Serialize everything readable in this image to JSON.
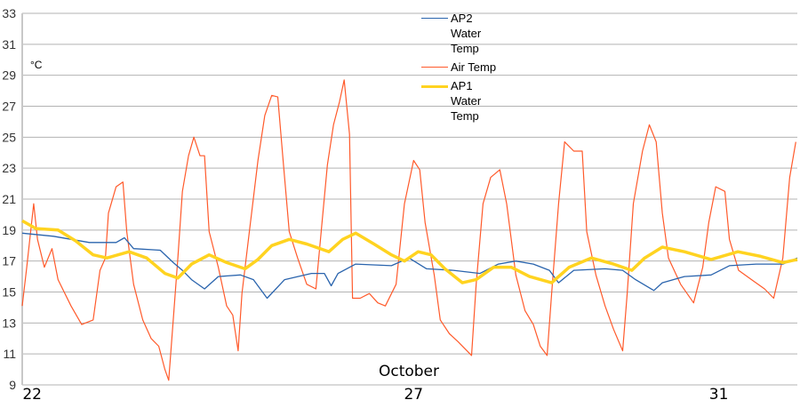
{
  "chart_data": {
    "type": "line",
    "title": "",
    "xlabel": "October",
    "ylabel": "°C",
    "xlim": [
      21.87,
      32.03
    ],
    "ylim": [
      9,
      33
    ],
    "yticks": [
      "9",
      "11",
      "13",
      "15",
      "17",
      "19",
      "21",
      "23",
      "25",
      "27",
      "29",
      "31",
      "33"
    ],
    "xticks": [
      {
        "value": 22,
        "label": "22"
      },
      {
        "value": 27,
        "label": "27"
      },
      {
        "value": 31,
        "label": "31"
      }
    ],
    "grid": true,
    "legend_position": "top-center",
    "series": [
      {
        "name": "AP2 Water Temp",
        "color": "#2a64ad",
        "width": 1.3,
        "points": [
          [
            21.87,
            18.8
          ],
          [
            22.28,
            18.6
          ],
          [
            22.75,
            18.2
          ],
          [
            23.1,
            18.2
          ],
          [
            23.21,
            18.5
          ],
          [
            23.33,
            17.8
          ],
          [
            23.68,
            17.7
          ],
          [
            23.85,
            16.9
          ],
          [
            23.97,
            16.4
          ],
          [
            24.09,
            15.8
          ],
          [
            24.26,
            15.2
          ],
          [
            24.44,
            16.0
          ],
          [
            24.73,
            16.1
          ],
          [
            24.9,
            15.8
          ],
          [
            25.08,
            14.6
          ],
          [
            25.31,
            15.8
          ],
          [
            25.66,
            16.2
          ],
          [
            25.83,
            16.2
          ],
          [
            25.92,
            15.4
          ],
          [
            26.01,
            16.2
          ],
          [
            26.24,
            16.8
          ],
          [
            26.71,
            16.7
          ],
          [
            26.94,
            17.2
          ],
          [
            27.17,
            16.5
          ],
          [
            27.52,
            16.4
          ],
          [
            27.87,
            16.2
          ],
          [
            28.11,
            16.8
          ],
          [
            28.34,
            17.0
          ],
          [
            28.57,
            16.8
          ],
          [
            28.78,
            16.4
          ],
          [
            28.9,
            15.6
          ],
          [
            29.1,
            16.4
          ],
          [
            29.51,
            16.5
          ],
          [
            29.74,
            16.4
          ],
          [
            29.91,
            15.8
          ],
          [
            30.15,
            15.1
          ],
          [
            30.26,
            15.6
          ],
          [
            30.55,
            16.0
          ],
          [
            30.9,
            16.1
          ],
          [
            31.14,
            16.7
          ],
          [
            31.49,
            16.8
          ],
          [
            31.84,
            16.8
          ],
          [
            32.03,
            17.2
          ]
        ]
      },
      {
        "name": "Air Temp",
        "color": "#ff5a2b",
        "width": 1.2,
        "points": [
          [
            21.87,
            14.1
          ],
          [
            21.93,
            16.6
          ],
          [
            22.02,
            20.7
          ],
          [
            22.07,
            18.4
          ],
          [
            22.16,
            16.6
          ],
          [
            22.26,
            17.8
          ],
          [
            22.34,
            15.8
          ],
          [
            22.51,
            14.1
          ],
          [
            22.65,
            12.9
          ],
          [
            22.8,
            13.2
          ],
          [
            22.89,
            16.4
          ],
          [
            22.96,
            17.2
          ],
          [
            23.0,
            20.1
          ],
          [
            23.1,
            21.8
          ],
          [
            23.19,
            22.1
          ],
          [
            23.24,
            18.9
          ],
          [
            23.33,
            15.5
          ],
          [
            23.45,
            13.2
          ],
          [
            23.56,
            12.0
          ],
          [
            23.66,
            11.5
          ],
          [
            23.74,
            10.0
          ],
          [
            23.79,
            9.3
          ],
          [
            23.85,
            13.2
          ],
          [
            23.91,
            17.2
          ],
          [
            23.97,
            21.5
          ],
          [
            24.05,
            23.8
          ],
          [
            24.12,
            25.0
          ],
          [
            24.2,
            23.8
          ],
          [
            24.26,
            23.8
          ],
          [
            24.32,
            18.9
          ],
          [
            24.44,
            16.6
          ],
          [
            24.55,
            14.1
          ],
          [
            24.63,
            13.5
          ],
          [
            24.7,
            11.2
          ],
          [
            24.75,
            14.9
          ],
          [
            24.84,
            18.6
          ],
          [
            24.96,
            23.5
          ],
          [
            25.05,
            26.4
          ],
          [
            25.14,
            27.7
          ],
          [
            25.22,
            27.6
          ],
          [
            25.29,
            23.5
          ],
          [
            25.37,
            18.9
          ],
          [
            25.48,
            17.2
          ],
          [
            25.6,
            15.5
          ],
          [
            25.72,
            15.2
          ],
          [
            25.8,
            19.5
          ],
          [
            25.87,
            23.2
          ],
          [
            25.95,
            25.8
          ],
          [
            26.03,
            27.3
          ],
          [
            26.09,
            28.7
          ],
          [
            26.16,
            25.2
          ],
          [
            26.2,
            14.6
          ],
          [
            26.3,
            14.6
          ],
          [
            26.42,
            14.9
          ],
          [
            26.53,
            14.3
          ],
          [
            26.63,
            14.1
          ],
          [
            26.77,
            15.5
          ],
          [
            26.88,
            20.7
          ],
          [
            27.0,
            23.5
          ],
          [
            27.08,
            22.9
          ],
          [
            27.15,
            19.5
          ],
          [
            27.27,
            16.1
          ],
          [
            27.35,
            13.2
          ],
          [
            27.47,
            12.3
          ],
          [
            27.58,
            11.8
          ],
          [
            27.7,
            11.2
          ],
          [
            27.76,
            10.9
          ],
          [
            27.82,
            15.5
          ],
          [
            27.91,
            20.7
          ],
          [
            28.01,
            22.4
          ],
          [
            28.13,
            22.9
          ],
          [
            28.22,
            20.7
          ],
          [
            28.34,
            16.1
          ],
          [
            28.46,
            13.8
          ],
          [
            28.57,
            12.9
          ],
          [
            28.66,
            11.5
          ],
          [
            28.75,
            10.9
          ],
          [
            28.81,
            14.9
          ],
          [
            28.9,
            20.7
          ],
          [
            28.98,
            24.7
          ],
          [
            29.1,
            24.1
          ],
          [
            29.21,
            24.1
          ],
          [
            29.27,
            18.9
          ],
          [
            29.39,
            16.1
          ],
          [
            29.51,
            14.1
          ],
          [
            29.62,
            12.6
          ],
          [
            29.74,
            11.2
          ],
          [
            29.8,
            14.9
          ],
          [
            29.88,
            20.7
          ],
          [
            30.0,
            24.1
          ],
          [
            30.09,
            25.8
          ],
          [
            30.18,
            24.7
          ],
          [
            30.26,
            20.1
          ],
          [
            30.34,
            17.2
          ],
          [
            30.5,
            15.5
          ],
          [
            30.67,
            14.3
          ],
          [
            30.79,
            16.6
          ],
          [
            30.87,
            19.5
          ],
          [
            30.96,
            21.8
          ],
          [
            31.08,
            21.5
          ],
          [
            31.14,
            18.4
          ],
          [
            31.26,
            16.4
          ],
          [
            31.43,
            15.8
          ],
          [
            31.6,
            15.2
          ],
          [
            31.72,
            14.6
          ],
          [
            31.84,
            17.2
          ],
          [
            31.93,
            22.4
          ],
          [
            32.01,
            24.7
          ]
        ]
      },
      {
        "name": "AP1 Water Temp",
        "color": "#ffd320",
        "width": 3.5,
        "points": [
          [
            21.87,
            19.6
          ],
          [
            22.05,
            19.1
          ],
          [
            22.34,
            19.0
          ],
          [
            22.57,
            18.3
          ],
          [
            22.8,
            17.4
          ],
          [
            22.98,
            17.2
          ],
          [
            23.27,
            17.6
          ],
          [
            23.5,
            17.2
          ],
          [
            23.74,
            16.2
          ],
          [
            23.91,
            15.9
          ],
          [
            24.09,
            16.8
          ],
          [
            24.32,
            17.4
          ],
          [
            24.55,
            16.9
          ],
          [
            24.79,
            16.5
          ],
          [
            24.96,
            17.1
          ],
          [
            25.14,
            18.0
          ],
          [
            25.37,
            18.4
          ],
          [
            25.6,
            18.1
          ],
          [
            25.89,
            17.6
          ],
          [
            26.07,
            18.4
          ],
          [
            26.24,
            18.8
          ],
          [
            26.48,
            18.1
          ],
          [
            26.71,
            17.4
          ],
          [
            26.88,
            17.0
          ],
          [
            27.06,
            17.6
          ],
          [
            27.23,
            17.4
          ],
          [
            27.41,
            16.5
          ],
          [
            27.64,
            15.6
          ],
          [
            27.82,
            15.8
          ],
          [
            28.05,
            16.6
          ],
          [
            28.28,
            16.6
          ],
          [
            28.52,
            16.0
          ],
          [
            28.81,
            15.6
          ],
          [
            29.04,
            16.6
          ],
          [
            29.33,
            17.2
          ],
          [
            29.62,
            16.8
          ],
          [
            29.86,
            16.4
          ],
          [
            30.03,
            17.2
          ],
          [
            30.26,
            17.9
          ],
          [
            30.55,
            17.6
          ],
          [
            30.9,
            17.1
          ],
          [
            31.25,
            17.6
          ],
          [
            31.55,
            17.3
          ],
          [
            31.84,
            16.9
          ],
          [
            32.03,
            17.1
          ]
        ]
      }
    ]
  }
}
